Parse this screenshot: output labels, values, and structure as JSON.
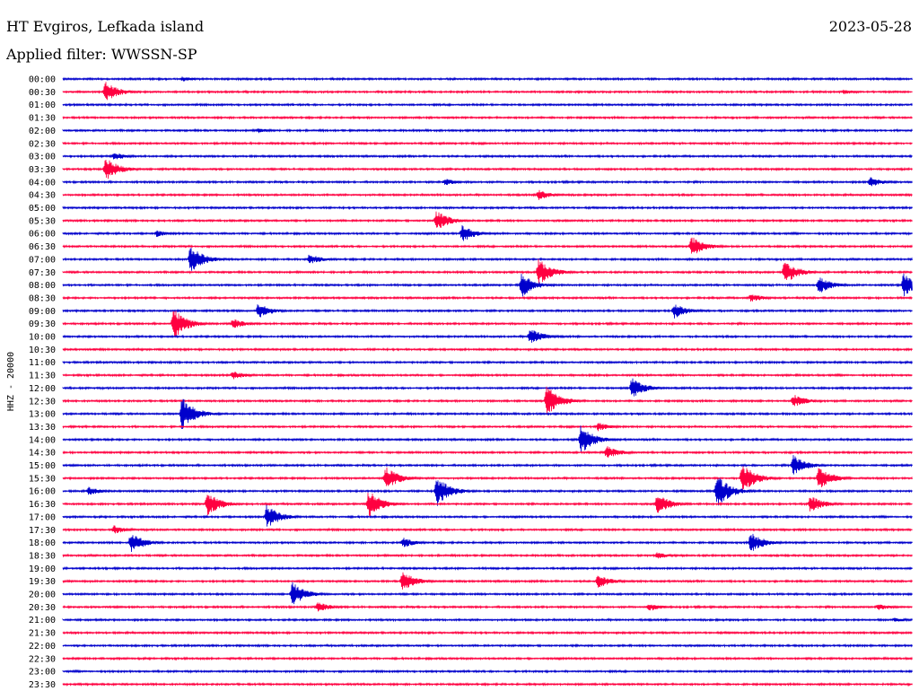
{
  "header": {
    "station": "HT Evgiros, Lefkada island",
    "date": "2023-05-28",
    "filter_label": "Applied filter: WWSSN-SP"
  },
  "chart_data": {
    "type": "line",
    "ylabel": "HHZ - 20000",
    "tick_labels": [
      "00:00",
      "00:30",
      "01:00",
      "01:30",
      "02:00",
      "02:30",
      "03:00",
      "03:30",
      "04:00",
      "04:30",
      "05:00",
      "05:30",
      "06:00",
      "06:30",
      "07:00",
      "07:30",
      "08:00",
      "08:30",
      "09:00",
      "09:30",
      "10:00",
      "10:30",
      "11:00",
      "11:30",
      "12:00",
      "12:30",
      "13:00",
      "13:30",
      "14:00",
      "14:30",
      "15:00",
      "15:30",
      "16:00",
      "16:30",
      "17:00",
      "17:30",
      "18:00",
      "18:30",
      "19:00",
      "19:30",
      "20:00",
      "20:30",
      "21:00",
      "21:30",
      "22:00",
      "22:30",
      "23:00",
      "23:30"
    ],
    "colors": {
      "even_rows": "#0000cc",
      "odd_rows": "#ff0040"
    },
    "events": [
      {
        "row": 0,
        "t": 0.14,
        "amp": 3
      },
      {
        "row": 1,
        "t": 0.05,
        "amp": 12
      },
      {
        "row": 1,
        "t": 0.92,
        "amp": 3
      },
      {
        "row": 4,
        "t": 0.23,
        "amp": 3
      },
      {
        "row": 6,
        "t": 0.06,
        "amp": 5
      },
      {
        "row": 7,
        "t": 0.05,
        "amp": 14
      },
      {
        "row": 8,
        "t": 0.45,
        "amp": 4
      },
      {
        "row": 8,
        "t": 0.95,
        "amp": 6
      },
      {
        "row": 9,
        "t": 0.56,
        "amp": 6
      },
      {
        "row": 11,
        "t": 0.44,
        "amp": 12
      },
      {
        "row": 12,
        "t": 0.47,
        "amp": 10
      },
      {
        "row": 12,
        "t": 0.11,
        "amp": 4
      },
      {
        "row": 13,
        "t": 0.74,
        "amp": 12
      },
      {
        "row": 14,
        "t": 0.15,
        "amp": 16
      },
      {
        "row": 14,
        "t": 0.29,
        "amp": 6
      },
      {
        "row": 15,
        "t": 0.56,
        "amp": 16
      },
      {
        "row": 15,
        "t": 0.85,
        "amp": 14
      },
      {
        "row": 16,
        "t": 0.54,
        "amp": 14
      },
      {
        "row": 16,
        "t": 0.89,
        "amp": 10
      },
      {
        "row": 16,
        "t": 0.99,
        "amp": 14
      },
      {
        "row": 17,
        "t": 0.81,
        "amp": 5
      },
      {
        "row": 18,
        "t": 0.23,
        "amp": 9
      },
      {
        "row": 18,
        "t": 0.72,
        "amp": 9
      },
      {
        "row": 19,
        "t": 0.13,
        "amp": 18
      },
      {
        "row": 19,
        "t": 0.2,
        "amp": 6
      },
      {
        "row": 20,
        "t": 0.55,
        "amp": 10
      },
      {
        "row": 23,
        "t": 0.2,
        "amp": 5
      },
      {
        "row": 24,
        "t": 0.67,
        "amp": 12
      },
      {
        "row": 25,
        "t": 0.57,
        "amp": 18
      },
      {
        "row": 25,
        "t": 0.86,
        "amp": 8
      },
      {
        "row": 26,
        "t": 0.14,
        "amp": 20
      },
      {
        "row": 27,
        "t": 0.63,
        "amp": 5
      },
      {
        "row": 28,
        "t": 0.61,
        "amp": 16
      },
      {
        "row": 29,
        "t": 0.64,
        "amp": 8
      },
      {
        "row": 30,
        "t": 0.86,
        "amp": 12
      },
      {
        "row": 31,
        "t": 0.38,
        "amp": 14
      },
      {
        "row": 31,
        "t": 0.8,
        "amp": 18
      },
      {
        "row": 31,
        "t": 0.89,
        "amp": 14
      },
      {
        "row": 32,
        "t": 0.44,
        "amp": 18
      },
      {
        "row": 32,
        "t": 0.77,
        "amp": 20
      },
      {
        "row": 32,
        "t": 0.03,
        "amp": 5
      },
      {
        "row": 33,
        "t": 0.17,
        "amp": 14
      },
      {
        "row": 33,
        "t": 0.36,
        "amp": 16
      },
      {
        "row": 33,
        "t": 0.7,
        "amp": 12
      },
      {
        "row": 33,
        "t": 0.88,
        "amp": 10
      },
      {
        "row": 34,
        "t": 0.24,
        "amp": 14
      },
      {
        "row": 35,
        "t": 0.06,
        "amp": 5
      },
      {
        "row": 36,
        "t": 0.08,
        "amp": 12
      },
      {
        "row": 36,
        "t": 0.4,
        "amp": 6
      },
      {
        "row": 36,
        "t": 0.81,
        "amp": 12
      },
      {
        "row": 37,
        "t": 0.7,
        "amp": 4
      },
      {
        "row": 39,
        "t": 0.4,
        "amp": 12
      },
      {
        "row": 39,
        "t": 0.63,
        "amp": 8
      },
      {
        "row": 40,
        "t": 0.27,
        "amp": 14
      },
      {
        "row": 41,
        "t": 0.3,
        "amp": 6
      },
      {
        "row": 41,
        "t": 0.69,
        "amp": 5
      },
      {
        "row": 41,
        "t": 0.96,
        "amp": 4
      },
      {
        "row": 42,
        "t": 0.98,
        "amp": 3
      }
    ]
  }
}
